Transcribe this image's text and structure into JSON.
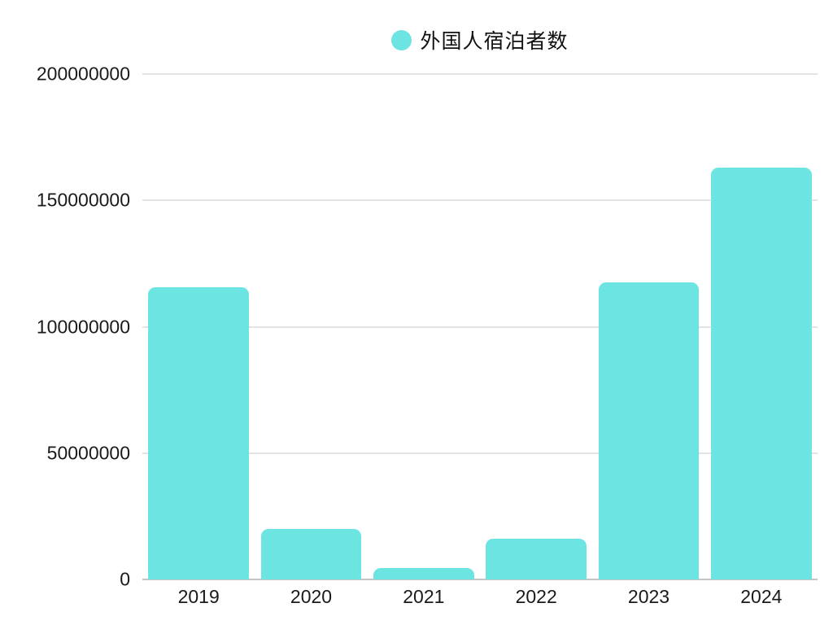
{
  "page": {
    "background": "#ffffff",
    "text_color": "#1a1a1a"
  },
  "legend": {
    "position": "top-center",
    "marker_shape": "circle"
  },
  "chart_data": {
    "type": "bar",
    "title": "",
    "xlabel": "",
    "ylabel": "",
    "categories": [
      "2019",
      "2020",
      "2021",
      "2022",
      "2023",
      "2024"
    ],
    "series": [
      {
        "name": "外国人宿泊者数",
        "color": "#6CE4E2",
        "values": [
          115500000,
          20000000,
          4500000,
          16000000,
          117500000,
          163000000
        ]
      }
    ],
    "ylim": [
      0,
      200000000
    ],
    "yticks": [
      0,
      50000000,
      100000000,
      150000000,
      200000000
    ],
    "ytick_labels": [
      "0",
      "50000000",
      "100000000",
      "150000000",
      "200000000"
    ],
    "grid": true,
    "gridline_color": "#e4e4e4",
    "axis_line_color": "#c4c4c4",
    "legend_position": "top-center"
  }
}
